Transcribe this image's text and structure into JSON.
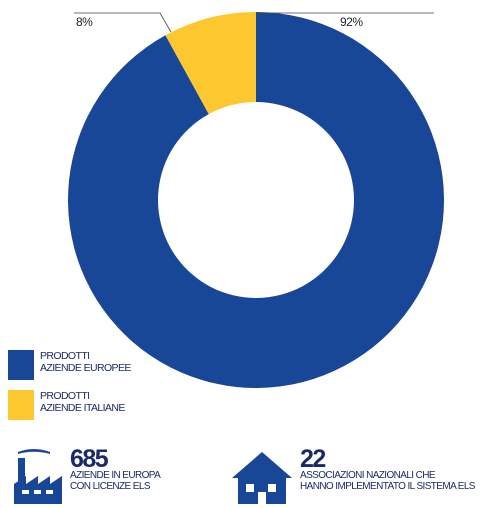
{
  "chart_data": {
    "type": "pie",
    "donut": true,
    "categories": [
      "PRODOTTI AZIENDE EUROPEE",
      "PRODOTTI AZIENDE ITALIANE"
    ],
    "values": [
      92,
      8
    ],
    "value_labels": [
      "92%",
      "8%"
    ],
    "colors": [
      "#174796",
      "#fdc82f"
    ],
    "legend": [
      {
        "line1": "PRODOTTI",
        "line2": "AZIENDE EUROPEE",
        "color": "#174796"
      },
      {
        "line1": "PRODOTTI",
        "line2": "AZIENDE ITALIANE",
        "color": "#fdc82f"
      }
    ],
    "legend_position": "bottom-left"
  },
  "stats": [
    {
      "number": "685",
      "line1": "AZIENDE IN EUROPA",
      "line2": "CON LICENZE ELS",
      "icon": "factory-icon"
    },
    {
      "number": "22",
      "line1": "ASSOCIAZIONI NAZIONALI CHE",
      "line2": "HANNO IMPLEMENTATO IL SISTEMA ELS",
      "icon": "house-icon"
    }
  ]
}
